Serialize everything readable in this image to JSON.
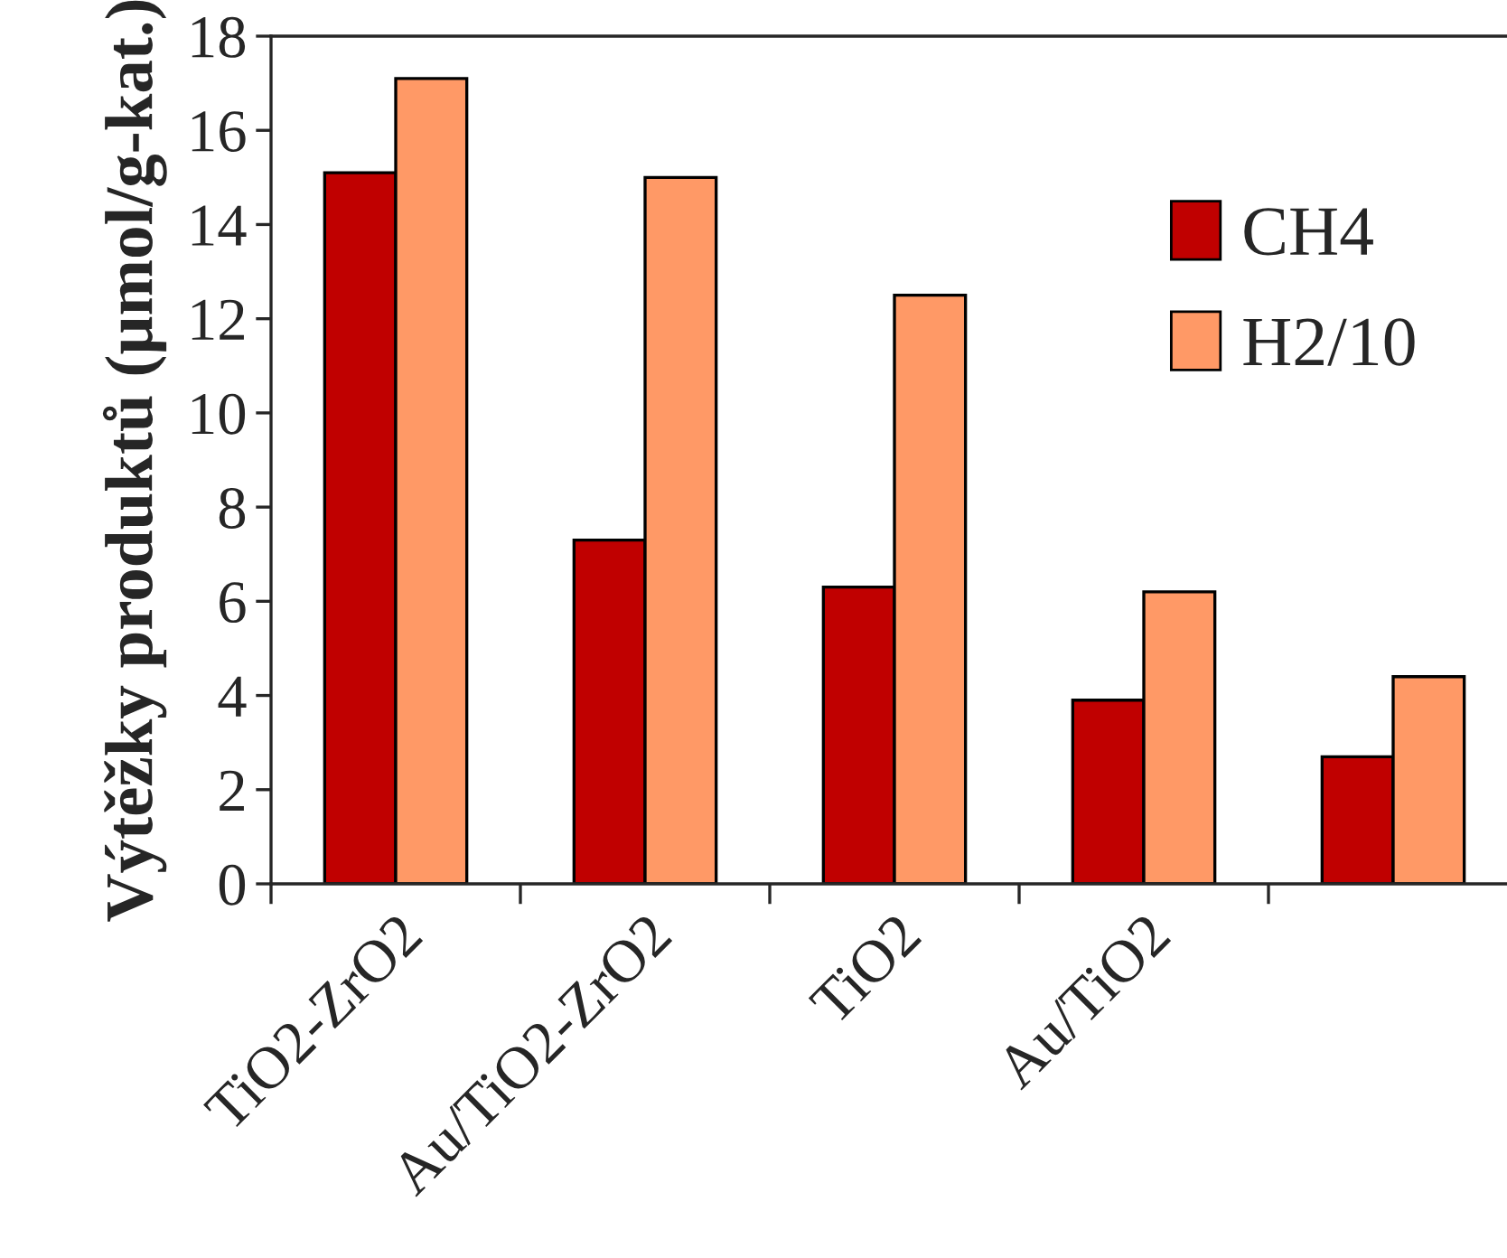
{
  "chart_data": {
    "type": "bar",
    "ylabel": "Výtěžky produktů (µmol/g-kat.)",
    "categories": [
      "TiO2-ZrO2",
      "Au/TiO2-ZrO2",
      "TiO2",
      "Au/TiO2",
      null
    ],
    "series": [
      {
        "name": "CH4",
        "color": "#c00000",
        "values": [
          15.1,
          7.3,
          6.3,
          3.9,
          2.7
        ]
      },
      {
        "name": "H2/10",
        "color": "#ff9966",
        "values": [
          17.1,
          15.0,
          12.5,
          6.2,
          4.4
        ]
      }
    ],
    "ylim": [
      0,
      18
    ],
    "yticks": [
      0,
      2,
      4,
      6,
      8,
      10,
      12,
      14,
      16,
      18
    ],
    "grid": false,
    "legend": "top right"
  }
}
